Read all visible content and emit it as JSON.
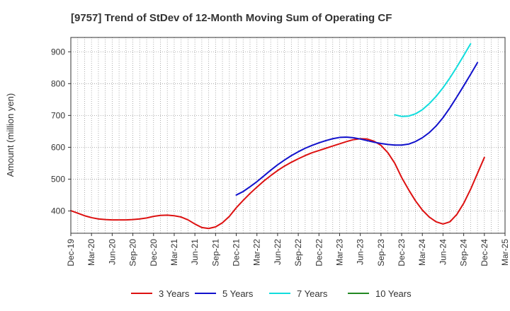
{
  "chart_data": {
    "type": "line",
    "title": "[9757]  Trend of StDev of 12-Month Moving Sum of Operating CF",
    "ylabel": "Amount (million yen)",
    "xlabel": "",
    "ylim": [
      330,
      945
    ],
    "yticks": [
      400,
      500,
      600,
      700,
      800,
      900
    ],
    "x_ticks": [
      "Dec-19",
      "Mar-20",
      "Jun-20",
      "Sep-20",
      "Dec-20",
      "Mar-21",
      "Jun-21",
      "Sep-21",
      "Dec-21",
      "Mar-22",
      "Jun-22",
      "Sep-22",
      "Dec-22",
      "Mar-23",
      "Jun-23",
      "Sep-23",
      "Dec-23",
      "Mar-24",
      "Jun-24",
      "Sep-24",
      "Dec-24",
      "Mar-25"
    ],
    "grid": true,
    "legend_position": "bottom",
    "series": [
      {
        "name": "3 Years",
        "color": "#dd1111",
        "points": [
          [
            "Dec-19",
            401
          ],
          [
            "Jan-20",
            393
          ],
          [
            "Feb-20",
            385
          ],
          [
            "Mar-20",
            379
          ],
          [
            "Apr-20",
            375
          ],
          [
            "May-20",
            373
          ],
          [
            "Jun-20",
            372
          ],
          [
            "Jul-20",
            372
          ],
          [
            "Aug-20",
            372
          ],
          [
            "Sep-20",
            373
          ],
          [
            "Oct-20",
            375
          ],
          [
            "Nov-20",
            378
          ],
          [
            "Dec-20",
            383
          ],
          [
            "Jan-21",
            386
          ],
          [
            "Feb-21",
            387
          ],
          [
            "Mar-21",
            385
          ],
          [
            "Apr-21",
            381
          ],
          [
            "May-21",
            372
          ],
          [
            "Jun-21",
            359
          ],
          [
            "Jul-21",
            348
          ],
          [
            "Aug-21",
            345
          ],
          [
            "Sep-21",
            350
          ],
          [
            "Oct-21",
            363
          ],
          [
            "Nov-21",
            383
          ],
          [
            "Dec-21",
            410
          ],
          [
            "Jan-22",
            433
          ],
          [
            "Feb-22",
            455
          ],
          [
            "Mar-22",
            475
          ],
          [
            "Apr-22",
            494
          ],
          [
            "May-22",
            511
          ],
          [
            "Jun-22",
            527
          ],
          [
            "Jul-22",
            541
          ],
          [
            "Aug-22",
            553
          ],
          [
            "Sep-22",
            564
          ],
          [
            "Oct-22",
            574
          ],
          [
            "Nov-22",
            583
          ],
          [
            "Dec-22",
            590
          ],
          [
            "Jan-23",
            597
          ],
          [
            "Feb-23",
            604
          ],
          [
            "Mar-23",
            611
          ],
          [
            "Apr-23",
            618
          ],
          [
            "May-23",
            624
          ],
          [
            "Jun-23",
            627
          ],
          [
            "Jul-23",
            626
          ],
          [
            "Aug-23",
            619
          ],
          [
            "Sep-23",
            606
          ],
          [
            "Oct-23",
            583
          ],
          [
            "Nov-23",
            550
          ],
          [
            "Dec-23",
            505
          ],
          [
            "Jan-24",
            467
          ],
          [
            "Feb-24",
            432
          ],
          [
            "Mar-24",
            403
          ],
          [
            "Apr-24",
            381
          ],
          [
            "May-24",
            366
          ],
          [
            "Jun-24",
            359
          ],
          [
            "Jul-24",
            366
          ],
          [
            "Aug-24",
            389
          ],
          [
            "Sep-24",
            424
          ],
          [
            "Oct-24",
            468
          ],
          [
            "Nov-24",
            518
          ],
          [
            "Dec-24",
            568
          ]
        ]
      },
      {
        "name": "5 Years",
        "color": "#1111cc",
        "points": [
          [
            "Dec-21",
            450
          ],
          [
            "Jan-22",
            461
          ],
          [
            "Feb-22",
            476
          ],
          [
            "Mar-22",
            492
          ],
          [
            "Apr-22",
            510
          ],
          [
            "May-22",
            528
          ],
          [
            "Jun-22",
            545
          ],
          [
            "Jul-22",
            560
          ],
          [
            "Aug-22",
            574
          ],
          [
            "Sep-22",
            586
          ],
          [
            "Oct-22",
            597
          ],
          [
            "Nov-22",
            606
          ],
          [
            "Dec-22",
            614
          ],
          [
            "Jan-23",
            621
          ],
          [
            "Feb-23",
            627
          ],
          [
            "Mar-23",
            631
          ],
          [
            "Apr-23",
            632
          ],
          [
            "May-23",
            630
          ],
          [
            "Jun-23",
            626
          ],
          [
            "Jul-23",
            621
          ],
          [
            "Aug-23",
            616
          ],
          [
            "Sep-23",
            612
          ],
          [
            "Oct-23",
            609
          ],
          [
            "Nov-23",
            607
          ],
          [
            "Dec-23",
            607
          ],
          [
            "Jan-24",
            610
          ],
          [
            "Feb-24",
            618
          ],
          [
            "Mar-24",
            630
          ],
          [
            "Apr-24",
            646
          ],
          [
            "May-24",
            667
          ],
          [
            "Jun-24",
            693
          ],
          [
            "Jul-24",
            724
          ],
          [
            "Aug-24",
            758
          ],
          [
            "Sep-24",
            793
          ],
          [
            "Oct-24",
            829
          ],
          [
            "Nov-24",
            866
          ]
        ]
      },
      {
        "name": "7 Years",
        "color": "#11dddd",
        "points": [
          [
            "Nov-23",
            702
          ],
          [
            "Dec-23",
            697
          ],
          [
            "Jan-24",
            698
          ],
          [
            "Feb-24",
            705
          ],
          [
            "Mar-24",
            718
          ],
          [
            "Apr-24",
            737
          ],
          [
            "May-24",
            760
          ],
          [
            "Jun-24",
            787
          ],
          [
            "Jul-24",
            818
          ],
          [
            "Aug-24",
            852
          ],
          [
            "Sep-24",
            888
          ],
          [
            "Oct-24",
            925
          ]
        ]
      },
      {
        "name": "10 Years",
        "color": "#228822",
        "points": []
      }
    ]
  }
}
